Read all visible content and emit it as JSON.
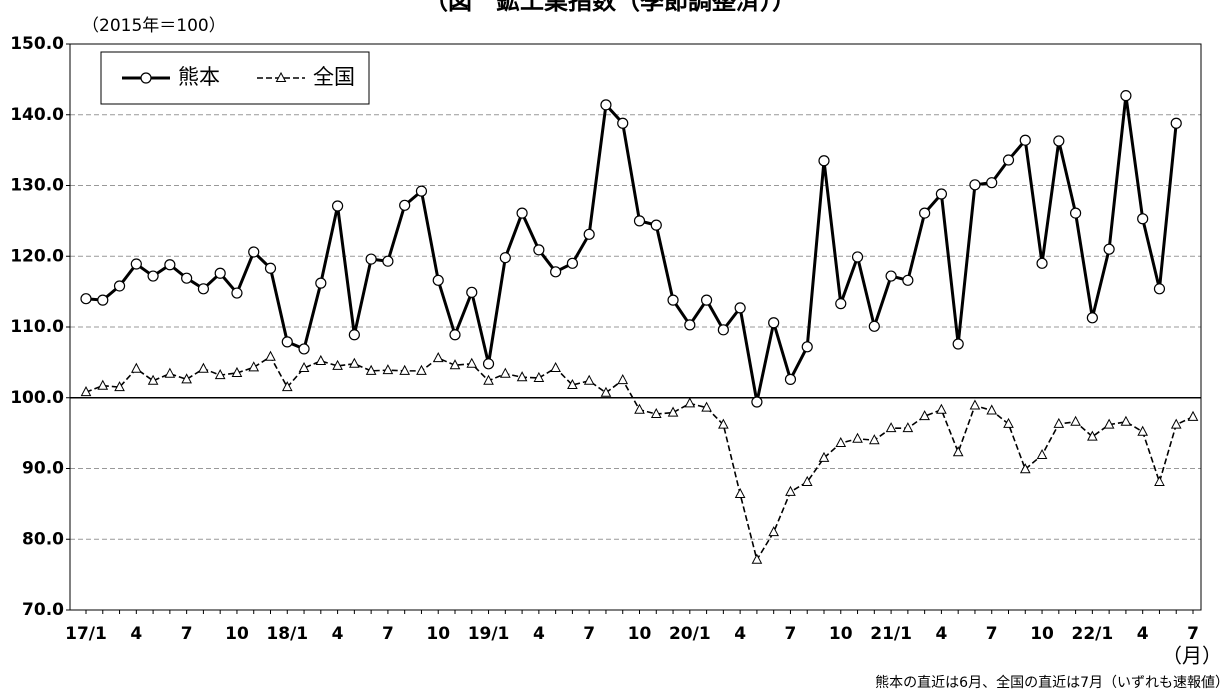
{
  "chart_data": {
    "type": "line",
    "title": "（図　鉱工業指数（季節調整済））",
    "unit_label": "（2015年＝100）",
    "x_unit": "（月）",
    "note": "熊本の直近は6月、全国の直近は7月（いずれも速報値）",
    "categories": [
      "17/1",
      null,
      null,
      "4",
      null,
      null,
      "7",
      null,
      null,
      "10",
      null,
      null,
      "18/1",
      null,
      null,
      "4",
      null,
      null,
      "7",
      null,
      null,
      "10",
      null,
      null,
      "19/1",
      null,
      null,
      "4",
      null,
      null,
      "7",
      null,
      null,
      "10",
      null,
      null,
      "20/1",
      null,
      null,
      "4",
      null,
      null,
      "7",
      null,
      null,
      "10",
      null,
      null,
      "21/1",
      null,
      null,
      "4",
      null,
      null,
      "7",
      null,
      null,
      "10",
      null,
      null,
      "22/1",
      null,
      null,
      "4",
      null,
      null,
      "7"
    ],
    "series": [
      {
        "name": "熊本",
        "color": "#000000",
        "style": "solid",
        "marker": "circle",
        "values": [
          114.0,
          113.8,
          115.8,
          118.9,
          117.2,
          118.8,
          116.9,
          115.4,
          117.6,
          114.8,
          120.6,
          118.3,
          107.9,
          106.9,
          116.2,
          127.1,
          108.9,
          119.6,
          119.3,
          127.2,
          129.2,
          116.6,
          108.9,
          114.9,
          104.8,
          119.8,
          126.1,
          120.9,
          117.8,
          119.0,
          123.1,
          141.4,
          138.8,
          125.0,
          124.4,
          113.8,
          110.3,
          113.8,
          109.6,
          112.7,
          99.4,
          110.6,
          102.6,
          107.2,
          133.5,
          113.3,
          119.9,
          110.1,
          117.2,
          116.6,
          126.1,
          128.8,
          107.6,
          130.1,
          130.4,
          133.6,
          136.4,
          119.0,
          136.3,
          126.1,
          111.3,
          121.0,
          142.7,
          125.3,
          115.4,
          138.8,
          null
        ]
      },
      {
        "name": "全国",
        "color": "#000000",
        "style": "dashed",
        "marker": "triangle",
        "values": [
          100.8,
          101.7,
          101.5,
          104.1,
          102.4,
          103.4,
          102.6,
          104.1,
          103.2,
          103.5,
          104.3,
          105.8,
          101.5,
          104.2,
          105.2,
          104.5,
          104.8,
          103.8,
          103.9,
          103.8,
          103.8,
          105.6,
          104.6,
          104.8,
          102.4,
          103.4,
          102.9,
          102.8,
          104.2,
          101.8,
          102.4,
          100.7,
          102.5,
          98.3,
          97.7,
          97.9,
          99.2,
          98.6,
          96.2,
          86.4,
          77.1,
          81.0,
          86.7,
          88.1,
          91.5,
          93.6,
          94.2,
          94.0,
          95.7,
          95.7,
          97.4,
          98.3,
          92.3,
          98.9,
          98.2,
          96.3,
          89.9,
          91.9,
          96.3,
          96.6,
          94.5,
          96.2,
          96.6,
          95.2,
          88.1,
          96.2,
          97.3
        ]
      }
    ],
    "ylim": [
      70,
      150
    ],
    "yticks": [
      {
        "value": 70,
        "label": "70.0"
      },
      {
        "value": 80,
        "label": "80.0"
      },
      {
        "value": 90,
        "label": "90.0"
      },
      {
        "value": 100,
        "label": "100.0"
      },
      {
        "value": 110,
        "label": "110.0"
      },
      {
        "value": 120,
        "label": "120.0"
      },
      {
        "value": 130,
        "label": "130.0"
      },
      {
        "value": 140,
        "label": "140.0"
      },
      {
        "value": 150,
        "label": "150.0"
      }
    ],
    "baseline": 100,
    "grid": true,
    "legend": "upper left"
  }
}
